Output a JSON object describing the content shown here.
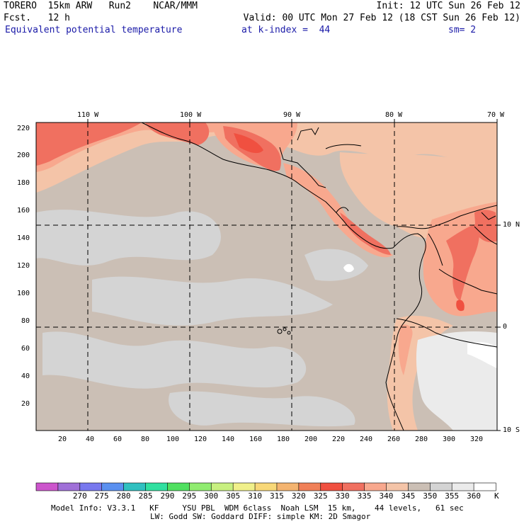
{
  "header": {
    "line1_left": "TORERO  15km ARW   Run2    NCAR/MMM",
    "line1_right": "Init: 12 UTC Sun 26 Feb 12",
    "line2_left": "Fcst.   12 h",
    "line2_right": "Valid: 00 UTC Mon 27 Feb 12 (18 CST Sun 26 Feb 12)",
    "field_name": "Equivalent potential temperature",
    "level": "at k-index =  44",
    "smoothing": "sm= 2"
  },
  "top_axis": [
    "110 W",
    "100 W",
    "90 W",
    "80 W",
    "70 W"
  ],
  "left_axis": [
    "220",
    "200",
    "180",
    "160",
    "140",
    "120",
    "100",
    "80",
    "60",
    "40",
    "20"
  ],
  "bottom_axis": [
    "20",
    "40",
    "60",
    "80",
    "100",
    "120",
    "140",
    "160",
    "180",
    "200",
    "220",
    "240",
    "260",
    "280",
    "300",
    "320"
  ],
  "right_axis": [
    "10 N",
    "0",
    "10 S"
  ],
  "colorbar": {
    "labels": [
      "270",
      "275",
      "280",
      "285",
      "290",
      "295",
      "300",
      "305",
      "310",
      "315",
      "320",
      "325",
      "330",
      "335",
      "340",
      "345",
      "350",
      "355",
      "360"
    ],
    "unit": "K",
    "colors": [
      "#cc55cc",
      "#a070d8",
      "#7878ee",
      "#5a90f0",
      "#30c0c0",
      "#30e0a0",
      "#50e060",
      "#90ec70",
      "#c8f080",
      "#f0f08a",
      "#f8d878",
      "#f4b470",
      "#f08058",
      "#f05040",
      "#f07060",
      "#f8a88e",
      "#f4c4a8",
      "#cbbfb5",
      "#d4d4d4",
      "#ebebeb",
      "#ffffff"
    ]
  },
  "footer": {
    "line1": "Model Info: V3.3.1   KF     YSU PBL  WDM 6class  Noah LSM  15 km,    44 levels,   61 sec",
    "line2": "LW: Godd SW: Goddard DIFF: simple KM: 2D Smagor"
  },
  "colors": {
    "background_field": "#cbbfb5",
    "cool_patch": "#d4d4d4",
    "warm_light": "#f4c4a8",
    "warm_mid": "#f8a88e",
    "warm_strong": "#f07060",
    "hot": "#f05040",
    "coldest_land": "#ebebeb"
  }
}
